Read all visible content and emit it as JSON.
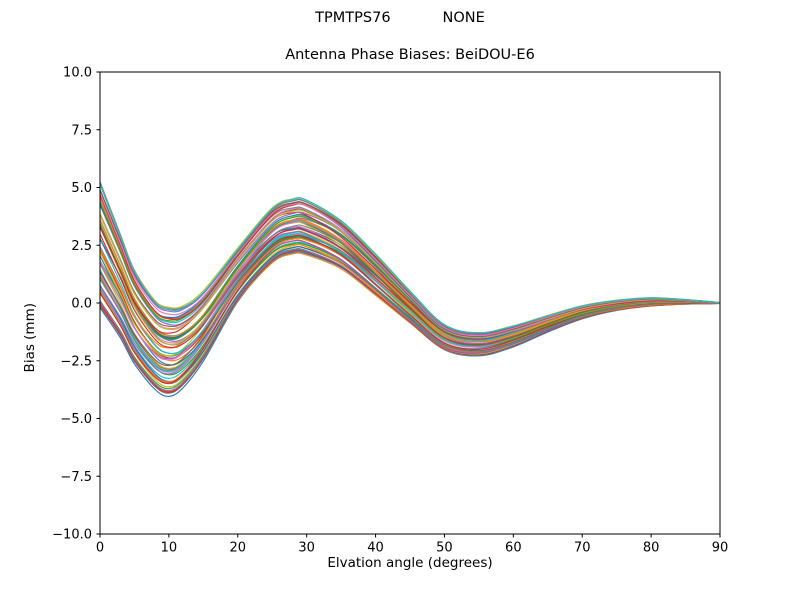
{
  "header": {
    "left": "TPMTPS76",
    "right": "NONE"
  },
  "chart_data": {
    "type": "line",
    "title": "Antenna Phase Biases: BeiDOU-E6",
    "xlabel": "Elvation angle (degrees)",
    "ylabel": "Bias (mm)",
    "xlim": [
      0,
      90
    ],
    "ylim": [
      -10,
      10
    ],
    "grid": false,
    "legend": "none",
    "xticks": [
      0,
      10,
      20,
      30,
      40,
      50,
      60,
      70,
      80,
      90
    ],
    "xtick_labels": [
      "0",
      "10",
      "20",
      "30",
      "40",
      "50",
      "60",
      "70",
      "80",
      "90"
    ],
    "yticks": [
      -10,
      -7.5,
      -5,
      -2.5,
      0,
      2.5,
      5,
      7.5,
      10
    ],
    "ytick_labels": [
      "−10.0",
      "−7.5",
      "−5.0",
      "−2.5",
      "0.0",
      "2.5",
      "5.0",
      "7.5",
      "10.0"
    ],
    "ensemble": {
      "note": "band of ~60 overlapping phase-bias curves; values read from plot",
      "x": [
        0,
        3,
        5,
        8,
        10,
        12,
        15,
        20,
        25,
        28,
        30,
        35,
        40,
        45,
        50,
        55,
        60,
        65,
        70,
        75,
        80,
        85,
        90
      ],
      "mean": [
        2.5,
        0.7,
        -0.6,
        -1.8,
        -2.1,
        -1.9,
        -1.0,
        1.2,
        2.9,
        3.3,
        3.25,
        2.5,
        1.2,
        -0.2,
        -1.5,
        -1.8,
        -1.45,
        -0.9,
        -0.4,
        -0.1,
        0.05,
        0.05,
        0.0
      ],
      "half_spread": [
        2.7,
        2.2,
        2.0,
        1.9,
        1.9,
        1.75,
        1.5,
        1.15,
        1.2,
        1.2,
        1.2,
        1.05,
        0.9,
        0.7,
        0.55,
        0.5,
        0.45,
        0.35,
        0.28,
        0.22,
        0.18,
        0.1,
        0.02
      ],
      "n_lines": 60,
      "seed": 42
    },
    "colors": [
      "#1f77b4",
      "#ff7f0e",
      "#2ca02c",
      "#d62728",
      "#9467bd",
      "#8c564b",
      "#e377c2",
      "#7f7f7f",
      "#bcbd22",
      "#17becf"
    ],
    "axis_color": "#000000",
    "background": "#ffffff"
  }
}
